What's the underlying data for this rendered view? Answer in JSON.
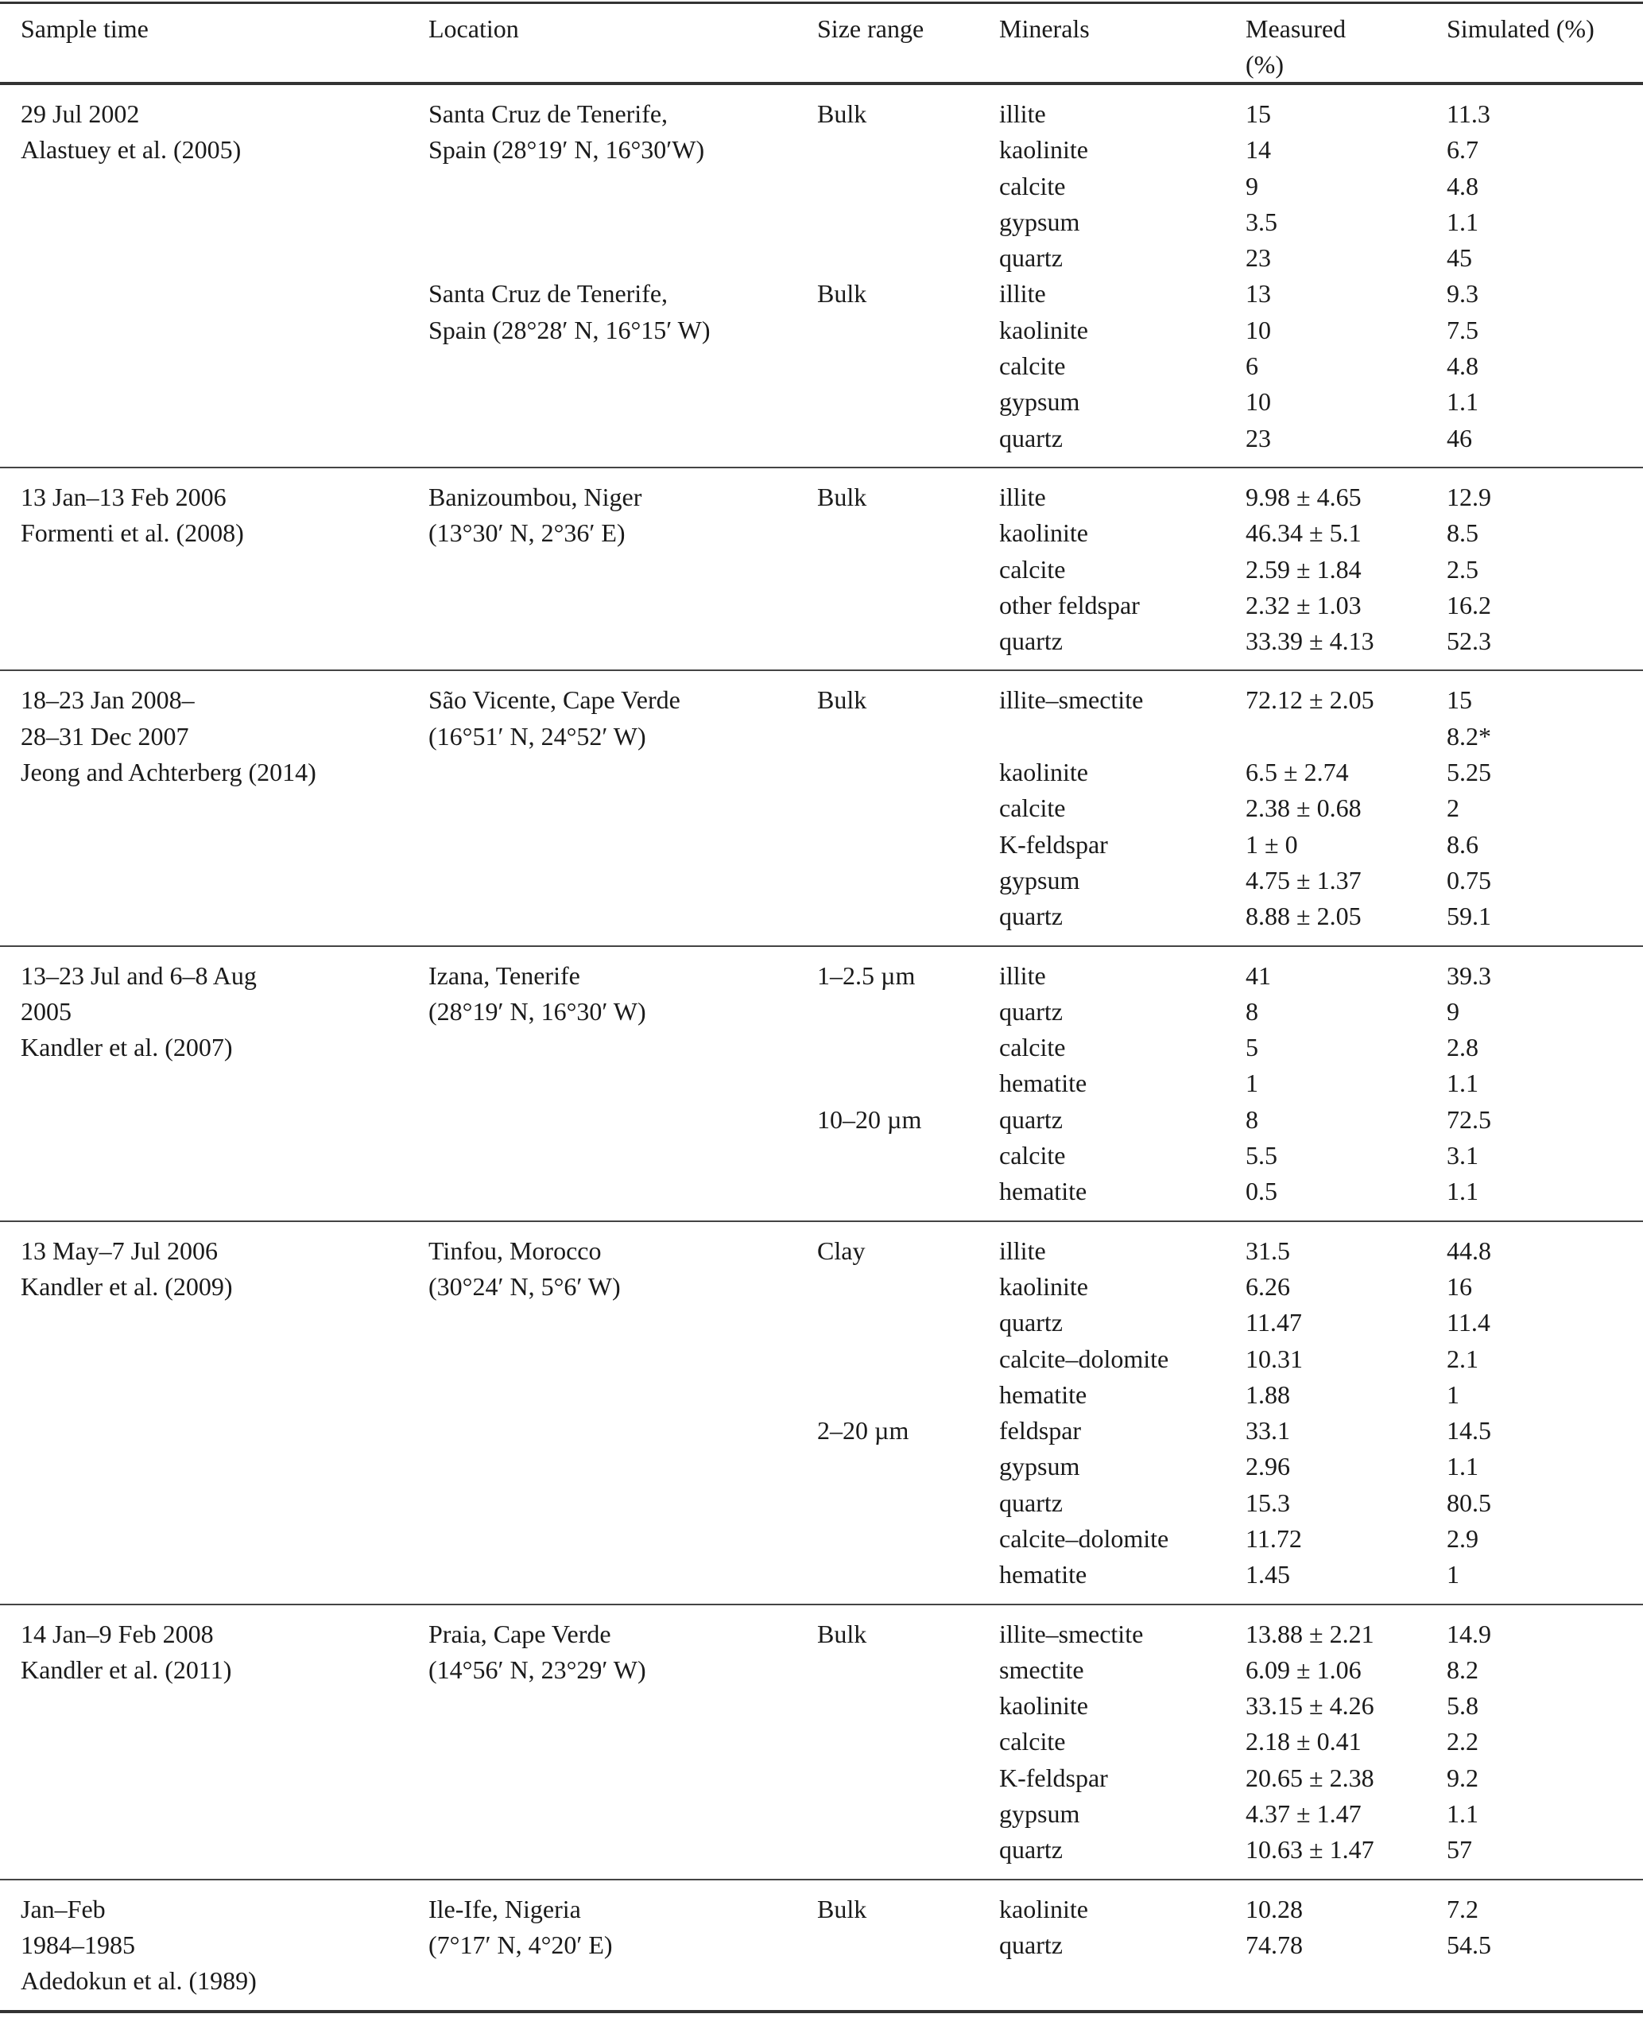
{
  "headers": {
    "sample_time": "Sample time",
    "location": "Location",
    "size_range": "Size range",
    "minerals": "Minerals",
    "measured_line1": "Measured",
    "measured_line2": "(%)",
    "simulated": "Simulated (%)"
  },
  "groups": [
    {
      "sample": [
        "29 Jul 2002",
        "Alastuey et al. (2005)"
      ],
      "sites": [
        {
          "location": [
            "Santa Cruz de Tenerife,",
            "Spain (28°19′ N, 16°30′W)"
          ],
          "size": [
            {
              "label": "Bulk",
              "rows": [
                [
                  "illite",
                  "15",
                  "11.3"
                ],
                [
                  "kaolinite",
                  "14",
                  "6.7"
                ],
                [
                  "calcite",
                  "9",
                  "4.8"
                ],
                [
                  "gypsum",
                  "3.5",
                  "1.1"
                ],
                [
                  "quartz",
                  "23",
                  "45"
                ]
              ]
            }
          ]
        },
        {
          "location": [
            "Santa Cruz de Tenerife,",
            "Spain (28°28′ N, 16°15′ W)"
          ],
          "size": [
            {
              "label": "Bulk",
              "rows": [
                [
                  "illite",
                  "13",
                  "9.3"
                ],
                [
                  "kaolinite",
                  "10",
                  "7.5"
                ],
                [
                  "calcite",
                  "6",
                  "4.8"
                ],
                [
                  "gypsum",
                  "10",
                  "1.1"
                ],
                [
                  "quartz",
                  "23",
                  "46"
                ]
              ]
            }
          ]
        }
      ]
    },
    {
      "sample": [
        "13 Jan–13 Feb 2006",
        "Formenti et al. (2008)"
      ],
      "sites": [
        {
          "location": [
            "Banizoumbou, Niger",
            "(13°30′ N, 2°36′ E)"
          ],
          "size": [
            {
              "label": "Bulk",
              "rows": [
                [
                  "illite",
                  "9.98 ± 4.65",
                  "12.9"
                ],
                [
                  "kaolinite",
                  "46.34 ± 5.1",
                  "8.5"
                ],
                [
                  "calcite",
                  "2.59 ± 1.84",
                  "2.5"
                ],
                [
                  "other feldspar",
                  "2.32 ± 1.03",
                  "16.2"
                ],
                [
                  "quartz",
                  "33.39 ± 4.13",
                  "52.3"
                ]
              ]
            }
          ]
        }
      ]
    },
    {
      "sample": [
        "18–23 Jan 2008–",
        "28–31 Dec 2007",
        "Jeong and Achterberg (2014)"
      ],
      "sites": [
        {
          "location": [
            "São Vicente, Cape Verde",
            "(16°51′ N, 24°52′ W)"
          ],
          "size": [
            {
              "label": "Bulk",
              "rows": [
                [
                  "illite–smectite",
                  "72.12 ± 2.05",
                  "15"
                ],
                [
                  "",
                  "",
                  "8.2*"
                ],
                [
                  "kaolinite",
                  "6.5 ± 2.74",
                  "5.25"
                ],
                [
                  "calcite",
                  "2.38 ± 0.68",
                  "2"
                ],
                [
                  "K-feldspar",
                  "1 ± 0",
                  "8.6"
                ],
                [
                  "gypsum",
                  "4.75 ± 1.37",
                  "0.75"
                ],
                [
                  "quartz",
                  "8.88 ± 2.05",
                  "59.1"
                ]
              ]
            }
          ]
        }
      ]
    },
    {
      "sample": [
        "13–23 Jul and 6–8 Aug",
        "2005",
        "Kandler et al. (2007)"
      ],
      "sites": [
        {
          "location": [
            "Izana, Tenerife",
            "(28°19′ N, 16°30′ W)"
          ],
          "size": [
            {
              "label": "1–2.5 µm",
              "rows": [
                [
                  "illite",
                  "41",
                  "39.3"
                ],
                [
                  "quartz",
                  "8",
                  "9"
                ],
                [
                  "calcite",
                  "5",
                  "2.8"
                ],
                [
                  "hematite",
                  "1",
                  "1.1"
                ]
              ]
            },
            {
              "label": "10–20 µm",
              "rows": [
                [
                  "quartz",
                  "8",
                  "72.5"
                ],
                [
                  "calcite",
                  "5.5",
                  "3.1"
                ],
                [
                  "hematite",
                  "0.5",
                  "1.1"
                ]
              ]
            }
          ]
        }
      ]
    },
    {
      "sample": [
        "13 May–7 Jul 2006",
        "Kandler et al. (2009)"
      ],
      "sites": [
        {
          "location": [
            "Tinfou, Morocco",
            "(30°24′ N, 5°6′ W)"
          ],
          "size": [
            {
              "label": "Clay",
              "rows": [
                [
                  "illite",
                  "31.5",
                  "44.8"
                ],
                [
                  "kaolinite",
                  "6.26",
                  "16"
                ],
                [
                  "quartz",
                  "11.47",
                  "11.4"
                ],
                [
                  "calcite–dolomite",
                  "10.31",
                  "2.1"
                ],
                [
                  "hematite",
                  "1.88",
                  "1"
                ]
              ]
            },
            {
              "label": "2–20 µm",
              "rows": [
                [
                  "feldspar",
                  "33.1",
                  "14.5"
                ],
                [
                  "gypsum",
                  "2.96",
                  "1.1"
                ],
                [
                  "quartz",
                  "15.3",
                  "80.5"
                ],
                [
                  "calcite–dolomite",
                  "11.72",
                  "2.9"
                ],
                [
                  "hematite",
                  "1.45",
                  "1"
                ]
              ]
            }
          ]
        }
      ]
    },
    {
      "sample": [
        "14 Jan–9 Feb 2008",
        "Kandler et al. (2011)"
      ],
      "sites": [
        {
          "location": [
            "Praia, Cape Verde",
            "(14°56′ N, 23°29′ W)"
          ],
          "size": [
            {
              "label": "Bulk",
              "rows": [
                [
                  "illite–smectite",
                  "13.88 ± 2.21",
                  "14.9"
                ],
                [
                  "smectite",
                  "6.09 ± 1.06",
                  "8.2"
                ],
                [
                  "kaolinite",
                  "33.15 ± 4.26",
                  "5.8"
                ],
                [
                  "calcite",
                  "2.18 ± 0.41",
                  "2.2"
                ],
                [
                  "K-feldspar",
                  "20.65 ± 2.38",
                  "9.2"
                ],
                [
                  "gypsum",
                  "4.37 ± 1.47",
                  "1.1"
                ],
                [
                  "quartz",
                  "10.63 ± 1.47",
                  "57"
                ]
              ]
            }
          ]
        }
      ]
    },
    {
      "sample": [
        "Jan–Feb",
        "1984–1985",
        "Adedokun et al. (1989)"
      ],
      "sites": [
        {
          "location": [
            "Ile-Ife, Nigeria",
            "(7°17′ N, 4°20′ E)"
          ],
          "size": [
            {
              "label": "Bulk",
              "rows": [
                [
                  "kaolinite",
                  "10.28",
                  "7.2"
                ],
                [
                  "quartz",
                  "74.78",
                  "54.5"
                ]
              ]
            }
          ]
        }
      ]
    }
  ]
}
